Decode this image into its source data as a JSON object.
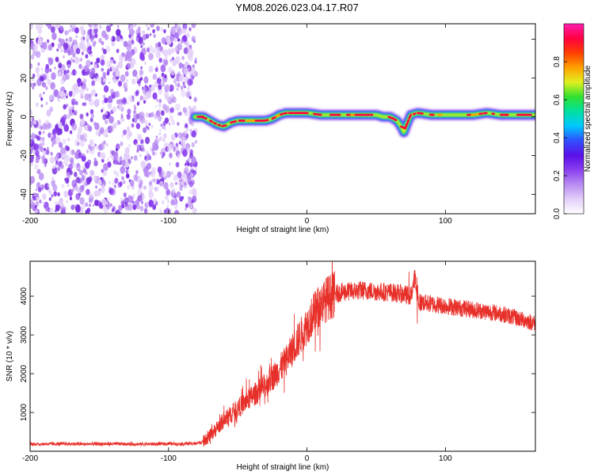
{
  "title": "YM08.2026.023.04.17.R07",
  "colors": {
    "snr_line": "#e8302a",
    "axis": "#000000",
    "noise_purple": "#7a2ee0",
    "colormap": [
      "#ffffff",
      "#e3cff9",
      "#b98cf2",
      "#8a3ff0",
      "#5b10e8",
      "#3050ff",
      "#00c8ff",
      "#00e0a0",
      "#30e030",
      "#e0f020",
      "#ffa000",
      "#ff4000",
      "#ff0040",
      "#ff20b0"
    ]
  },
  "chart_data": [
    {
      "id": "spectrogram",
      "type": "heatmap",
      "title": "YM08.2026.023.04.17.R07",
      "xlabel": "Height of straight line (km)",
      "ylabel": "Frequency (Hz)",
      "xlim": [
        -200,
        165
      ],
      "ylim": [
        -50,
        48
      ],
      "xticks": [
        -200,
        -100,
        0,
        100
      ],
      "yticks": [
        -40,
        -20,
        0,
        20,
        40
      ],
      "noise_region_x": [
        -200,
        -80
      ],
      "ridge": {
        "x": [
          -81,
          -75,
          -70,
          -65,
          -60,
          -55,
          -50,
          -45,
          -40,
          -35,
          -30,
          -25,
          -20,
          -15,
          -10,
          -5,
          0,
          10,
          20,
          30,
          40,
          50,
          55,
          60,
          65,
          68,
          70,
          72,
          75,
          80,
          90,
          100,
          110,
          120,
          130,
          140,
          150,
          160,
          165
        ],
        "y": [
          0,
          0,
          -2,
          -4,
          -5,
          -3,
          -2,
          -2,
          -2,
          -2,
          -2,
          -1,
          1,
          2,
          2,
          2,
          2,
          1,
          1,
          1,
          1,
          1,
          0,
          0,
          -2,
          -5,
          -8,
          -4,
          1,
          2,
          1,
          1,
          1,
          1,
          2,
          1,
          1,
          1,
          1
        ]
      },
      "colorbar": {
        "label": "Normalized spectral amplitude",
        "range": [
          0.0,
          1.0
        ],
        "ticks": [
          0.0,
          0.2,
          0.4,
          0.6,
          0.8
        ],
        "tick_labels": [
          "0.0",
          "0.2",
          "0.4",
          "0.6",
          "0.8"
        ]
      }
    },
    {
      "id": "snr",
      "type": "line",
      "xlabel": "Height of straight line (km)",
      "ylabel": "SNR (10 * v/v)",
      "xlim": [
        -200,
        165
      ],
      "ylim": [
        0,
        4900
      ],
      "xticks": [
        -200,
        -100,
        0,
        100
      ],
      "yticks": [
        1000,
        2000,
        3000,
        4000
      ],
      "series": [
        {
          "name": "SNR",
          "x": [
            -200,
            -180,
            -160,
            -140,
            -120,
            -100,
            -90,
            -80,
            -75,
            -70,
            -65,
            -60,
            -55,
            -50,
            -45,
            -40,
            -35,
            -30,
            -25,
            -20,
            -15,
            -10,
            -5,
            0,
            5,
            10,
            15,
            20,
            25,
            30,
            40,
            50,
            60,
            70,
            75,
            78,
            80,
            90,
            100,
            110,
            120,
            130,
            140,
            150,
            160,
            165
          ],
          "y": [
            180,
            190,
            185,
            190,
            185,
            190,
            190,
            200,
            250,
            400,
            600,
            800,
            950,
            1100,
            1250,
            1400,
            1550,
            1700,
            1900,
            2100,
            2350,
            2650,
            2950,
            3250,
            3550,
            3800,
            3950,
            4050,
            4100,
            4120,
            4150,
            4120,
            4100,
            4050,
            4000,
            4500,
            3850,
            3800,
            3750,
            3700,
            3650,
            3600,
            3550,
            3450,
            3350,
            3300
          ]
        }
      ]
    }
  ]
}
